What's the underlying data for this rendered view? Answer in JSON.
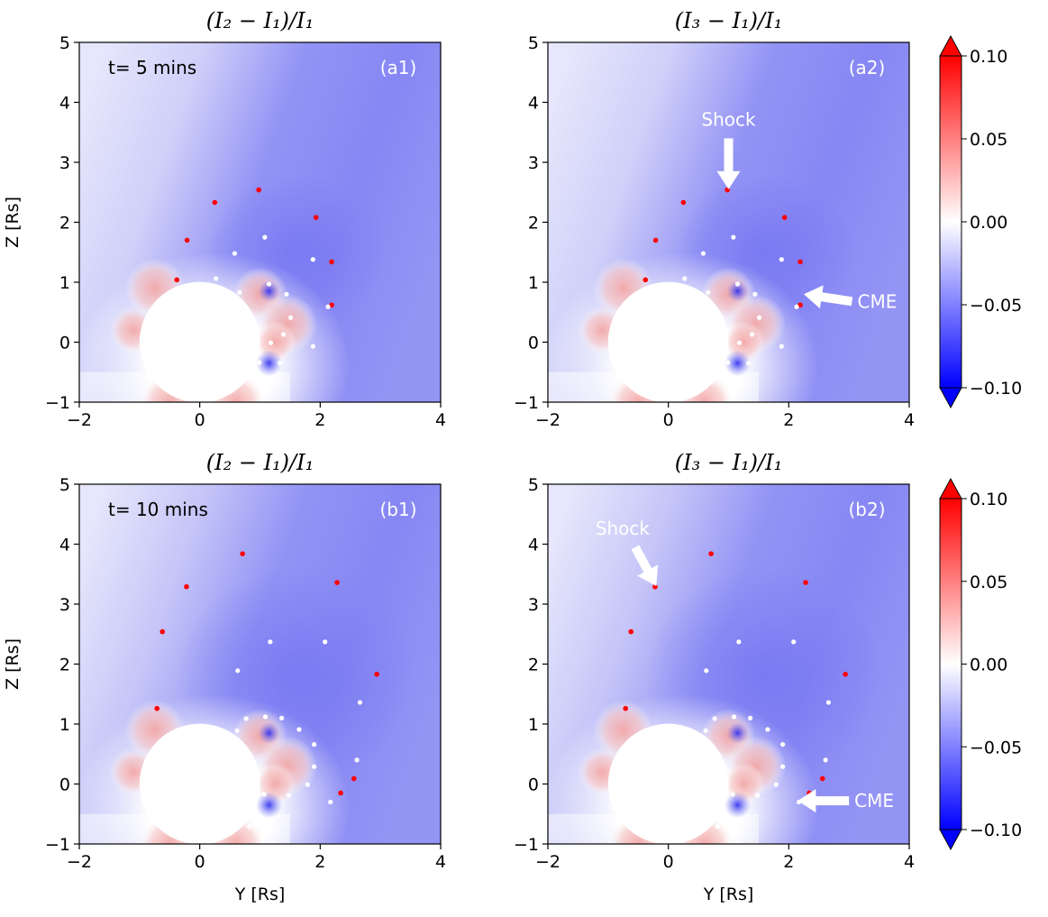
{
  "chart_data": [
    {
      "type": "heatmap",
      "panel": "a1",
      "title": "(I₂ − I₁)/I₁",
      "annotation_time": "t= 5 mins",
      "panel_label": "(a1)",
      "xlabel": "",
      "ylabel": "Z [Rs]",
      "xlim": [
        -2,
        4
      ],
      "ylim": [
        -1,
        5
      ],
      "xticks": [
        "−2",
        "0",
        "2",
        "4"
      ],
      "yticks": [
        "−1",
        "0",
        "1",
        "2",
        "3",
        "4",
        "5"
      ],
      "occulter": {
        "center": [
          0,
          0
        ],
        "radius": 1
      },
      "red_points": [
        [
          0.98,
          2.54
        ],
        [
          0.25,
          2.33
        ],
        [
          1.93,
          2.08
        ],
        [
          -0.21,
          1.7
        ],
        [
          2.19,
          1.34
        ],
        [
          -0.38,
          1.04
        ],
        [
          2.19,
          0.62
        ]
      ],
      "white_points": [
        [
          1.08,
          1.75
        ],
        [
          0.58,
          1.48
        ],
        [
          1.88,
          1.38
        ],
        [
          0.27,
          1.06
        ],
        [
          1.15,
          0.97
        ],
        [
          0.66,
          0.83
        ],
        [
          1.44,
          0.8
        ],
        [
          2.13,
          0.59
        ],
        [
          1.51,
          0.41
        ],
        [
          1.39,
          0.13
        ],
        [
          1.18,
          -0.01
        ],
        [
          1.88,
          -0.07
        ],
        [
          0.99,
          -0.34
        ],
        [
          1.33,
          -0.35
        ]
      ],
      "arrows": []
    },
    {
      "type": "heatmap",
      "panel": "a2",
      "title": "(I₃ − I₁)/I₁",
      "annotation_time": "",
      "panel_label": "(a2)",
      "xlabel": "",
      "ylabel": "",
      "xlim": [
        -2,
        4
      ],
      "ylim": [
        -1,
        5
      ],
      "xticks": [
        "−2",
        "0",
        "2",
        "4"
      ],
      "yticks": [
        "−1",
        "0",
        "1",
        "2",
        "3",
        "4",
        "5"
      ],
      "occulter": {
        "center": [
          0,
          0
        ],
        "radius": 1
      },
      "red_points": [
        [
          0.98,
          2.54
        ],
        [
          0.25,
          2.33
        ],
        [
          1.93,
          2.08
        ],
        [
          -0.21,
          1.7
        ],
        [
          2.19,
          1.34
        ],
        [
          -0.38,
          1.04
        ],
        [
          2.19,
          0.62
        ]
      ],
      "white_points": [
        [
          1.08,
          1.75
        ],
        [
          0.58,
          1.48
        ],
        [
          1.88,
          1.38
        ],
        [
          0.27,
          1.06
        ],
        [
          1.15,
          0.97
        ],
        [
          0.66,
          0.83
        ],
        [
          1.44,
          0.8
        ],
        [
          2.13,
          0.59
        ],
        [
          1.51,
          0.41
        ],
        [
          1.39,
          0.13
        ],
        [
          1.18,
          -0.01
        ],
        [
          1.88,
          -0.07
        ],
        [
          0.99,
          -0.34
        ],
        [
          1.33,
          -0.35
        ]
      ],
      "arrows": [
        {
          "label": "Shock",
          "from": [
            1.0,
            3.4
          ],
          "to": [
            1.0,
            2.55
          ]
        },
        {
          "label": "CME",
          "from": [
            3.05,
            0.68
          ],
          "to": [
            2.25,
            0.8
          ]
        }
      ]
    },
    {
      "type": "heatmap",
      "panel": "b1",
      "title": "(I₂ − I₁)/I₁",
      "annotation_time": "t= 10 mins",
      "panel_label": "(b1)",
      "xlabel": "Y [Rs]",
      "ylabel": "Z [Rs]",
      "xlim": [
        -2,
        4
      ],
      "ylim": [
        -1,
        5
      ],
      "xticks": [
        "−2",
        "0",
        "2",
        "4"
      ],
      "yticks": [
        "−1",
        "0",
        "1",
        "2",
        "3",
        "4",
        "5"
      ],
      "occulter": {
        "center": [
          0,
          0
        ],
        "radius": 1
      },
      "red_points": [
        [
          0.71,
          3.84
        ],
        [
          2.28,
          3.36
        ],
        [
          -0.22,
          3.29
        ],
        [
          -0.62,
          2.54
        ],
        [
          2.94,
          1.83
        ],
        [
          -0.71,
          1.26
        ],
        [
          2.56,
          0.09
        ],
        [
          2.34,
          -0.15
        ]
      ],
      "white_points": [
        [
          1.17,
          2.37
        ],
        [
          2.08,
          2.37
        ],
        [
          0.63,
          1.89
        ],
        [
          2.66,
          1.36
        ],
        [
          0.77,
          1.09
        ],
        [
          1.09,
          1.12
        ],
        [
          1.36,
          1.1
        ],
        [
          0.62,
          0.89
        ],
        [
          1.65,
          0.91
        ],
        [
          1.9,
          0.66
        ],
        [
          2.61,
          0.4
        ],
        [
          1.9,
          0.29
        ],
        [
          1.79,
          -0.01
        ],
        [
          1.07,
          -0.17
        ],
        [
          1.48,
          -0.19
        ],
        [
          2.17,
          -0.3
        ],
        [
          0.82,
          -0.71
        ],
        [
          1.18,
          -0.73
        ]
      ],
      "arrows": []
    },
    {
      "type": "heatmap",
      "panel": "b2",
      "title": "(I₃ − I₁)/I₁",
      "annotation_time": "",
      "panel_label": "(b2)",
      "xlabel": "Y [Rs]",
      "ylabel": "",
      "xlim": [
        -2,
        4
      ],
      "ylim": [
        -1,
        5
      ],
      "xticks": [
        "−2",
        "0",
        "2",
        "4"
      ],
      "yticks": [
        "−1",
        "0",
        "1",
        "2",
        "3",
        "4",
        "5"
      ],
      "occulter": {
        "center": [
          0,
          0
        ],
        "radius": 1
      },
      "red_points": [
        [
          0.71,
          3.84
        ],
        [
          2.28,
          3.36
        ],
        [
          -0.22,
          3.29
        ],
        [
          -0.62,
          2.54
        ],
        [
          2.94,
          1.83
        ],
        [
          -0.71,
          1.26
        ],
        [
          2.56,
          0.09
        ],
        [
          2.34,
          -0.15
        ]
      ],
      "white_points": [
        [
          1.17,
          2.37
        ],
        [
          2.08,
          2.37
        ],
        [
          0.63,
          1.89
        ],
        [
          2.66,
          1.36
        ],
        [
          0.77,
          1.09
        ],
        [
          1.09,
          1.12
        ],
        [
          1.36,
          1.1
        ],
        [
          0.62,
          0.89
        ],
        [
          1.65,
          0.91
        ],
        [
          1.9,
          0.66
        ],
        [
          2.61,
          0.4
        ],
        [
          1.9,
          0.29
        ],
        [
          1.79,
          -0.01
        ],
        [
          1.07,
          -0.17
        ],
        [
          1.48,
          -0.19
        ],
        [
          2.17,
          -0.3
        ],
        [
          0.82,
          -0.71
        ],
        [
          1.18,
          -0.73
        ]
      ],
      "arrows": [
        {
          "label": "Shock",
          "from": [
            -0.55,
            3.95
          ],
          "to": [
            -0.2,
            3.3
          ]
        },
        {
          "label": "CME",
          "from": [
            3.0,
            -0.28
          ],
          "to": [
            2.15,
            -0.28
          ]
        }
      ]
    }
  ],
  "colorbar": {
    "colormap": "bwr",
    "range": [
      -0.1,
      0.1
    ],
    "extend": "both",
    "ticks": [
      "0.10",
      "0.05",
      "0.00",
      "−0.05",
      "−0.10"
    ],
    "colors": {
      "max": "#ff0000",
      "mid": "#ffffff",
      "min": "#0000ff"
    }
  }
}
